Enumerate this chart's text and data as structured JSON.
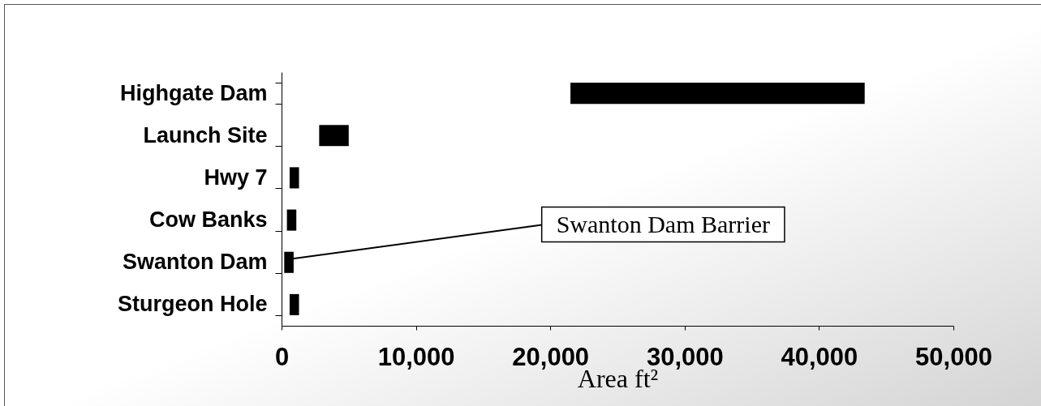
{
  "chart_data": {
    "type": "bar",
    "orientation": "horizontal",
    "categories": [
      "Highgate Dam",
      "Launch Site",
      "Hwy 7",
      "Cow Banks",
      "Swanton Dam",
      "Sturgeon Hole"
    ],
    "base": [
      21500,
      2800,
      600,
      400,
      200,
      600
    ],
    "values": [
      21900,
      2200,
      700,
      700,
      700,
      700
    ],
    "color": "#000000",
    "xlabel": "Area ft²",
    "xlim": [
      0,
      50000
    ],
    "xticks": [
      0,
      {
        "value": 10000,
        "label": "10,000"
      },
      {
        "value": 20000,
        "label": "20,000"
      },
      {
        "value": 30000,
        "label": "30,000"
      },
      {
        "value": 40000,
        "label": "40,000"
      },
      {
        "value": 50000,
        "label": "50,000"
      }
    ],
    "annotations": [
      {
        "text": "Swanton Dam Barrier",
        "x": 600,
        "y": "Swanton Dam"
      }
    ]
  }
}
